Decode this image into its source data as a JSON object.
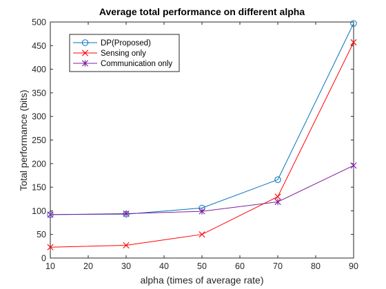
{
  "chart_data": {
    "type": "line",
    "title": "Average total performance on different alpha",
    "xlabel": "alpha (times of average rate)",
    "ylabel": "Total performance (bits)",
    "x": [
      10,
      30,
      50,
      70,
      90
    ],
    "xlim": [
      10,
      90
    ],
    "ylim": [
      0,
      500
    ],
    "xticks": [
      10,
      20,
      30,
      40,
      50,
      60,
      70,
      80,
      90
    ],
    "yticks": [
      0,
      50,
      100,
      150,
      200,
      250,
      300,
      350,
      400,
      450,
      500
    ],
    "grid": false,
    "legend_position": "top-left",
    "series": [
      {
        "name": "DP(Proposed)",
        "values": [
          92,
          93,
          106,
          166,
          497
        ],
        "color": "#0072BD",
        "marker": "circle"
      },
      {
        "name": "Sensing only",
        "values": [
          23,
          27,
          50,
          130,
          457
        ],
        "color": "#FF0000",
        "marker": "x"
      },
      {
        "name": "Communication only",
        "values": [
          92,
          94,
          99,
          119,
          196
        ],
        "color": "#7E1E9C",
        "marker": "asterisk"
      }
    ]
  }
}
